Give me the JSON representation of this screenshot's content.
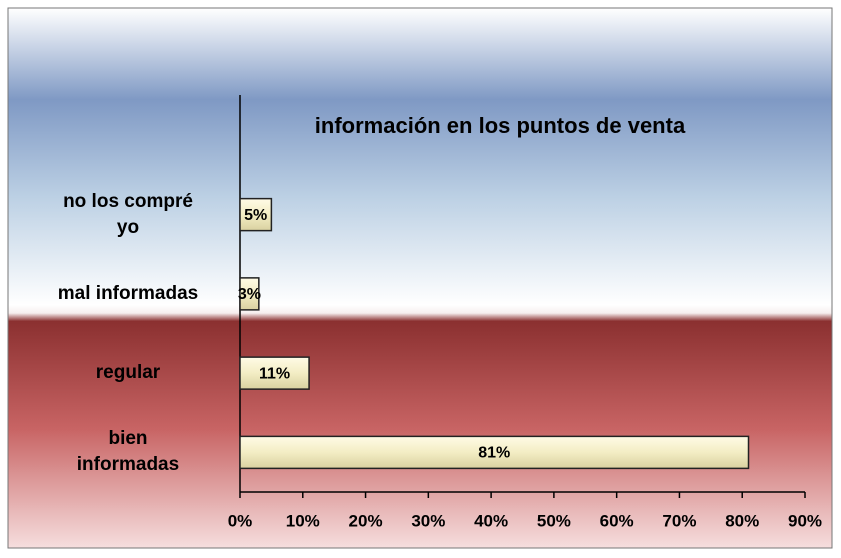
{
  "chart_data": {
    "type": "bar",
    "orientation": "horizontal",
    "title": "información en los puntos de  venta",
    "categories": [
      "no los compré yo",
      "mal informadas",
      "regular",
      "bien informadas"
    ],
    "values": [
      5,
      3,
      11,
      81
    ],
    "value_labels": [
      "5%",
      "3%",
      "11%",
      "81%"
    ],
    "color": "#f3edc4",
    "xlim": [
      0,
      90
    ],
    "xticks": [
      {
        "value": 0,
        "label": "0%"
      },
      {
        "value": 10,
        "label": "10%"
      },
      {
        "value": 20,
        "label": "20%"
      },
      {
        "value": 30,
        "label": "30%"
      },
      {
        "value": 40,
        "label": "40%"
      },
      {
        "value": 50,
        "label": "50%"
      },
      {
        "value": 60,
        "label": "60%"
      },
      {
        "value": 70,
        "label": "70%"
      },
      {
        "value": 80,
        "label": "80%"
      },
      {
        "value": 90,
        "label": "90%"
      }
    ],
    "grid": false
  }
}
